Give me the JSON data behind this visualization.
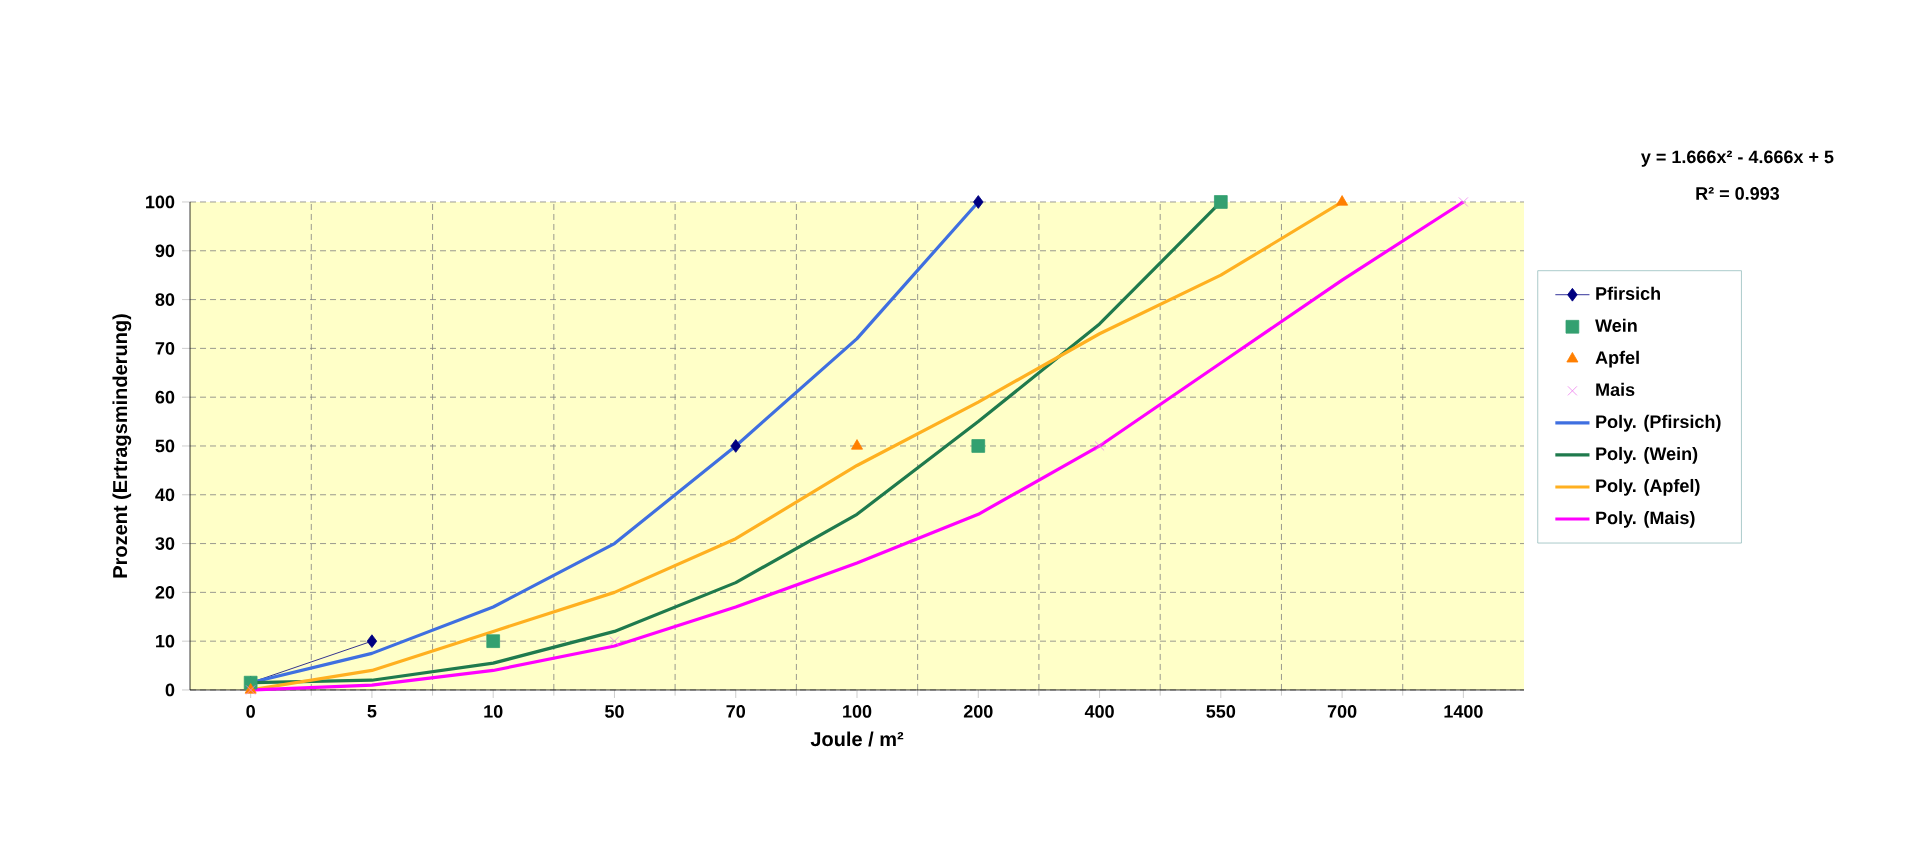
{
  "chart_data": {
    "type": "line",
    "xlabel": "Joule / m²",
    "ylabel": "Prozent (Ertragsminderung)",
    "categories": [
      "0",
      "5",
      "10",
      "50",
      "70",
      "100",
      "200",
      "400",
      "550",
      "700",
      "1400"
    ],
    "ylim": [
      0,
      100
    ],
    "yticks": [
      0,
      10,
      20,
      30,
      40,
      50,
      60,
      70,
      80,
      90,
      100
    ],
    "grid": true,
    "legend": "right",
    "annotations": [
      "y = 1.666x² - 4.666x + 5",
      "R² = 0.993"
    ],
    "series": [
      {
        "name": "Pfirsich",
        "color": "#000080",
        "marker": "diamond",
        "values": [
          1.5,
          10,
          null,
          null,
          50,
          null,
          100,
          null,
          null,
          null,
          null
        ]
      },
      {
        "name": "Wein",
        "type": "scatter",
        "color": "#33a070",
        "marker": "square",
        "values": [
          1.5,
          null,
          10,
          null,
          null,
          null,
          50,
          null,
          100,
          null,
          null
        ]
      },
      {
        "name": "Apfel",
        "type": "scatter",
        "color": "#ff7f00",
        "marker": "triangle",
        "values": [
          0,
          null,
          null,
          null,
          null,
          50,
          null,
          null,
          null,
          100,
          null
        ]
      },
      {
        "name": "Mais",
        "type": "scatter",
        "color": "#ee82ee",
        "marker": "cross",
        "values": [
          0,
          null,
          null,
          10,
          null,
          null,
          null,
          50,
          null,
          null,
          100
        ]
      },
      {
        "name": "Poly. (Pfirsich)",
        "color": "#3f6fe0",
        "marker": "none",
        "values": [
          1.5,
          7.5,
          17,
          30,
          50,
          72,
          100,
          null,
          null,
          null,
          null
        ]
      },
      {
        "name": "Poly. (Wein)",
        "color": "#1f7a4d",
        "marker": "none",
        "values": [
          1.5,
          2,
          5.5,
          12,
          22,
          36,
          55,
          75,
          100,
          null,
          null
        ]
      },
      {
        "name": "Poly. (Apfel)",
        "color": "#ffb020",
        "marker": "none",
        "values": [
          0,
          4,
          12,
          20,
          31,
          46,
          59,
          73,
          85,
          100,
          null
        ]
      },
      {
        "name": "Poly. (Mais)",
        "color": "#ff00ff",
        "marker": "none",
        "values": [
          0,
          1,
          4,
          9,
          17,
          26,
          36,
          50,
          67,
          84,
          100
        ]
      }
    ]
  }
}
